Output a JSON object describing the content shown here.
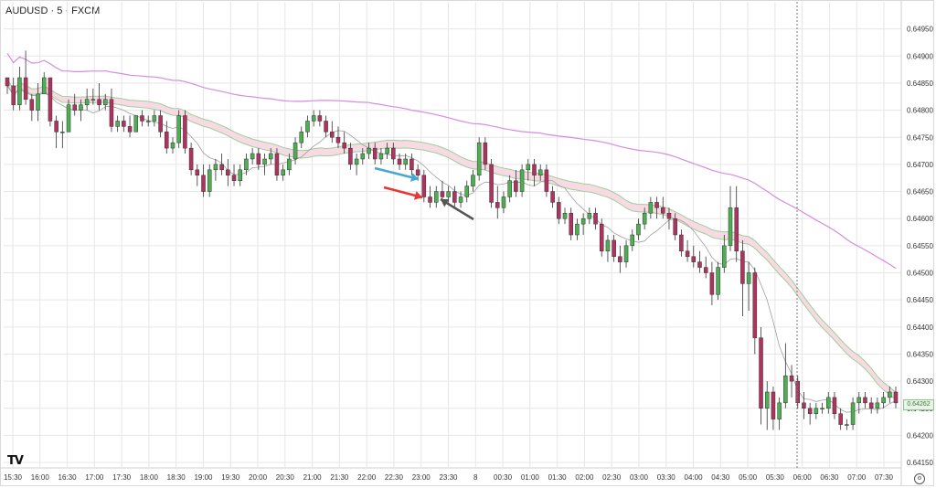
{
  "header": {
    "symbol": "AUDUSD · 5 · FXCM"
  },
  "branding": {
    "logo_text": "TV"
  },
  "price_badge": "0.64262",
  "colors": {
    "bull": "#4caf50",
    "bear": "#b0325e",
    "ribbon": "#f7d3e1",
    "ribbon_edge": "#9ccf9a",
    "slow_ma": "#d78be0",
    "fast_ma": "#9e9e9e",
    "grid": "#e6e6e6"
  },
  "y_ticks": [
    "0.64950",
    "0.64900",
    "0.64850",
    "0.64800",
    "0.64750",
    "0.64700",
    "0.64650",
    "0.64600",
    "0.64550",
    "0.64500",
    "0.64450",
    "0.64400",
    "0.64350",
    "0.64300",
    "0.64250",
    "0.64200",
    "0.64150"
  ],
  "x_ticks": [
    "15:30",
    "16:00",
    "16:30",
    "17:00",
    "17:30",
    "18:00",
    "18:30",
    "19:00",
    "19:30",
    "20:00",
    "20:30",
    "21:00",
    "21:30",
    "22:00",
    "22:30",
    "23:00",
    "23:30",
    "8",
    "00:30",
    "01:00",
    "01:30",
    "02:00",
    "02:30",
    "03:00",
    "03:30",
    "04:00",
    "04:30",
    "05:00",
    "05:30",
    "06:00",
    "06:30",
    "07:00",
    "07:30"
  ],
  "chart_data": {
    "type": "candlestick",
    "title": "AUDUSD · 5 · FXCM",
    "ylim": [
      0.6414,
      0.65
    ],
    "x_ticks": [
      "15:30",
      "16:00",
      "16:30",
      "17:00",
      "17:30",
      "18:00",
      "18:30",
      "19:00",
      "19:30",
      "20:00",
      "20:30",
      "21:00",
      "21:30",
      "22:00",
      "22:30",
      "23:00",
      "23:30",
      "8",
      "00:30",
      "01:00",
      "01:30",
      "02:00",
      "02:30",
      "03:00",
      "03:30",
      "04:00",
      "04:30",
      "05:00",
      "05:30",
      "06:00",
      "06:30",
      "07:00",
      "07:30"
    ],
    "candles": [
      [
        0.6486,
        0.6486,
        0.6483,
        0.64845
      ],
      [
        0.64845,
        0.6486,
        0.648,
        0.6481
      ],
      [
        0.6481,
        0.6488,
        0.648,
        0.6486
      ],
      [
        0.6486,
        0.6491,
        0.6481,
        0.6482
      ],
      [
        0.6482,
        0.6483,
        0.6478,
        0.648
      ],
      [
        0.648,
        0.6485,
        0.6478,
        0.6483
      ],
      [
        0.6483,
        0.6487,
        0.6483,
        0.6486
      ],
      [
        0.6486,
        0.6486,
        0.6477,
        0.6478
      ],
      [
        0.6478,
        0.6479,
        0.6473,
        0.6476
      ],
      [
        0.6476,
        0.6478,
        0.6473,
        0.6476
      ],
      [
        0.6476,
        0.6482,
        0.6476,
        0.6481
      ],
      [
        0.6481,
        0.6483,
        0.6479,
        0.648
      ],
      [
        0.648,
        0.6482,
        0.6478,
        0.6481
      ],
      [
        0.6481,
        0.6484,
        0.648,
        0.6482
      ],
      [
        0.6482,
        0.6484,
        0.6481,
        0.6482
      ],
      [
        0.6482,
        0.6485,
        0.648,
        0.6481
      ],
      [
        0.6481,
        0.6483,
        0.648,
        0.6482
      ],
      [
        0.6482,
        0.6484,
        0.6476,
        0.6477
      ],
      [
        0.6477,
        0.6479,
        0.6476,
        0.6478
      ],
      [
        0.6478,
        0.6479,
        0.6476,
        0.6477
      ],
      [
        0.6477,
        0.6479,
        0.6475,
        0.6476
      ],
      [
        0.6476,
        0.6479,
        0.6476,
        0.6479
      ],
      [
        0.6479,
        0.648,
        0.6477,
        0.6478
      ],
      [
        0.6478,
        0.6479,
        0.6477,
        0.6478
      ],
      [
        0.6478,
        0.648,
        0.6477,
        0.6479
      ],
      [
        0.6479,
        0.648,
        0.6475,
        0.6476
      ],
      [
        0.6476,
        0.6478,
        0.6472,
        0.6473
      ],
      [
        0.6473,
        0.6475,
        0.6472,
        0.6474
      ],
      [
        0.6474,
        0.648,
        0.6473,
        0.6479
      ],
      [
        0.6479,
        0.648,
        0.6472,
        0.6473
      ],
      [
        0.6473,
        0.6474,
        0.6468,
        0.6469
      ],
      [
        0.6469,
        0.647,
        0.6466,
        0.6468
      ],
      [
        0.6468,
        0.647,
        0.6464,
        0.6465
      ],
      [
        0.6465,
        0.647,
        0.6464,
        0.6469
      ],
      [
        0.6469,
        0.6471,
        0.6467,
        0.647
      ],
      [
        0.647,
        0.6472,
        0.6468,
        0.6469
      ],
      [
        0.6469,
        0.6471,
        0.6466,
        0.6468
      ],
      [
        0.6468,
        0.647,
        0.6466,
        0.6467
      ],
      [
        0.6467,
        0.647,
        0.6466,
        0.6469
      ],
      [
        0.6469,
        0.6472,
        0.6468,
        0.6471
      ],
      [
        0.6471,
        0.6473,
        0.647,
        0.6472
      ],
      [
        0.6472,
        0.6473,
        0.6469,
        0.647
      ],
      [
        0.647,
        0.6472,
        0.6468,
        0.6471
      ],
      [
        0.6471,
        0.6473,
        0.647,
        0.6472
      ],
      [
        0.6472,
        0.6473,
        0.6467,
        0.6468
      ],
      [
        0.6468,
        0.647,
        0.6467,
        0.6469
      ],
      [
        0.6469,
        0.6472,
        0.6468,
        0.6471
      ],
      [
        0.6471,
        0.6475,
        0.647,
        0.6474
      ],
      [
        0.6474,
        0.6477,
        0.6473,
        0.6476
      ],
      [
        0.6476,
        0.6479,
        0.6475,
        0.6478
      ],
      [
        0.6478,
        0.648,
        0.6477,
        0.6479
      ],
      [
        0.6479,
        0.648,
        0.6477,
        0.6478
      ],
      [
        0.6478,
        0.6479,
        0.6475,
        0.6476
      ],
      [
        0.6476,
        0.6478,
        0.6474,
        0.6475
      ],
      [
        0.6475,
        0.6477,
        0.6473,
        0.6474
      ],
      [
        0.6474,
        0.6476,
        0.6472,
        0.6473
      ],
      [
        0.6473,
        0.6474,
        0.6469,
        0.647
      ],
      [
        0.647,
        0.6472,
        0.6468,
        0.6471
      ],
      [
        0.6471,
        0.6473,
        0.647,
        0.6472
      ],
      [
        0.6472,
        0.6474,
        0.6471,
        0.6473
      ],
      [
        0.6473,
        0.6474,
        0.647,
        0.6471
      ],
      [
        0.6471,
        0.6473,
        0.647,
        0.6472
      ],
      [
        0.6472,
        0.6474,
        0.6471,
        0.6473
      ],
      [
        0.6473,
        0.6474,
        0.647,
        0.6471
      ],
      [
        0.6471,
        0.6472,
        0.6469,
        0.647
      ],
      [
        0.647,
        0.6472,
        0.6469,
        0.6471
      ],
      [
        0.6471,
        0.6472,
        0.6468,
        0.6469
      ],
      [
        0.6469,
        0.647,
        0.6467,
        0.6468
      ],
      [
        0.6468,
        0.6469,
        0.6463,
        0.6464
      ],
      [
        0.6464,
        0.6466,
        0.6462,
        0.6463
      ],
      [
        0.6463,
        0.6466,
        0.6462,
        0.6465
      ],
      [
        0.6465,
        0.6467,
        0.6463,
        0.6464
      ],
      [
        0.6464,
        0.6466,
        0.6463,
        0.6465
      ],
      [
        0.6465,
        0.6466,
        0.6462,
        0.6463
      ],
      [
        0.6463,
        0.6465,
        0.6462,
        0.6464
      ],
      [
        0.6464,
        0.6467,
        0.6463,
        0.6466
      ],
      [
        0.6466,
        0.6469,
        0.6465,
        0.6468
      ],
      [
        0.6468,
        0.6475,
        0.6467,
        0.6474
      ],
      [
        0.6474,
        0.6475,
        0.6469,
        0.647
      ],
      [
        0.647,
        0.6471,
        0.6462,
        0.6463
      ],
      [
        0.6463,
        0.6466,
        0.646,
        0.6462
      ],
      [
        0.6462,
        0.6465,
        0.6461,
        0.6464
      ],
      [
        0.6464,
        0.6468,
        0.6463,
        0.6467
      ],
      [
        0.6467,
        0.6469,
        0.6464,
        0.6465
      ],
      [
        0.6465,
        0.647,
        0.6464,
        0.6469
      ],
      [
        0.6469,
        0.6471,
        0.6467,
        0.647
      ],
      [
        0.647,
        0.6471,
        0.6466,
        0.6468
      ],
      [
        0.6468,
        0.647,
        0.6467,
        0.6469
      ],
      [
        0.6469,
        0.647,
        0.6464,
        0.6465
      ],
      [
        0.6465,
        0.6466,
        0.6462,
        0.6463
      ],
      [
        0.6463,
        0.6464,
        0.6459,
        0.646
      ],
      [
        0.646,
        0.6462,
        0.6459,
        0.6461
      ],
      [
        0.6461,
        0.6462,
        0.6456,
        0.6457
      ],
      [
        0.6457,
        0.646,
        0.6456,
        0.6459
      ],
      [
        0.6459,
        0.6461,
        0.6457,
        0.646
      ],
      [
        0.646,
        0.6462,
        0.6459,
        0.6461
      ],
      [
        0.6461,
        0.6462,
        0.6458,
        0.6459
      ],
      [
        0.6459,
        0.646,
        0.6453,
        0.6454
      ],
      [
        0.6454,
        0.6457,
        0.6452,
        0.6456
      ],
      [
        0.6456,
        0.6457,
        0.6452,
        0.6453
      ],
      [
        0.6453,
        0.6455,
        0.645,
        0.6452
      ],
      [
        0.6452,
        0.6456,
        0.6451,
        0.6455
      ],
      [
        0.6455,
        0.6458,
        0.6454,
        0.6457
      ],
      [
        0.6457,
        0.646,
        0.6456,
        0.6459
      ],
      [
        0.6459,
        0.6462,
        0.6458,
        0.6461
      ],
      [
        0.6461,
        0.6464,
        0.646,
        0.6463
      ],
      [
        0.6463,
        0.6464,
        0.646,
        0.6462
      ],
      [
        0.6462,
        0.6464,
        0.646,
        0.6461
      ],
      [
        0.6461,
        0.6462,
        0.6458,
        0.646
      ],
      [
        0.646,
        0.6461,
        0.6456,
        0.6457
      ],
      [
        0.6457,
        0.6458,
        0.6453,
        0.6454
      ],
      [
        0.6454,
        0.6456,
        0.6452,
        0.6453
      ],
      [
        0.6453,
        0.6455,
        0.6451,
        0.6452
      ],
      [
        0.6452,
        0.6454,
        0.645,
        0.6451
      ],
      [
        0.6451,
        0.6453,
        0.6449,
        0.645
      ],
      [
        0.645,
        0.6452,
        0.6444,
        0.6446
      ],
      [
        0.6446,
        0.6452,
        0.6445,
        0.6451
      ],
      [
        0.6451,
        0.6457,
        0.645,
        0.6455
      ],
      [
        0.6455,
        0.6466,
        0.6454,
        0.6462
      ],
      [
        0.6462,
        0.6466,
        0.6452,
        0.6454
      ],
      [
        0.6454,
        0.6456,
        0.6442,
        0.6448
      ],
      [
        0.6448,
        0.6452,
        0.6443,
        0.645
      ],
      [
        0.645,
        0.6451,
        0.6435,
        0.6438
      ],
      [
        0.6438,
        0.644,
        0.6422,
        0.6425
      ],
      [
        0.6425,
        0.643,
        0.6421,
        0.6428
      ],
      [
        0.6428,
        0.6429,
        0.6421,
        0.6423
      ],
      [
        0.6423,
        0.6427,
        0.6421,
        0.6426
      ],
      [
        0.6426,
        0.6437,
        0.6425,
        0.6431
      ],
      [
        0.6431,
        0.6433,
        0.6427,
        0.643
      ],
      [
        0.643,
        0.6431,
        0.6425,
        0.6426
      ],
      [
        0.6426,
        0.6428,
        0.6423,
        0.6425
      ],
      [
        0.6425,
        0.6426,
        0.6422,
        0.6424
      ],
      [
        0.6424,
        0.6426,
        0.6423,
        0.6425
      ],
      [
        0.6425,
        0.6426,
        0.6424,
        0.6425
      ],
      [
        0.6425,
        0.6428,
        0.6424,
        0.6427
      ],
      [
        0.6427,
        0.6428,
        0.6423,
        0.6424
      ],
      [
        0.6424,
        0.6425,
        0.6421,
        0.6422
      ],
      [
        0.6422,
        0.6423,
        0.6421,
        0.6422
      ],
      [
        0.6422,
        0.6427,
        0.6421,
        0.6426
      ],
      [
        0.6426,
        0.6428,
        0.6424,
        0.6427
      ],
      [
        0.6427,
        0.6428,
        0.6425,
        0.6426
      ],
      [
        0.6426,
        0.6427,
        0.6424,
        0.6425
      ],
      [
        0.6425,
        0.6427,
        0.6424,
        0.6426
      ],
      [
        0.6426,
        0.6428,
        0.6425,
        0.6427
      ],
      [
        0.6427,
        0.6429,
        0.6426,
        0.6428
      ],
      [
        0.6428,
        0.6429,
        0.6425,
        0.6426
      ]
    ]
  }
}
